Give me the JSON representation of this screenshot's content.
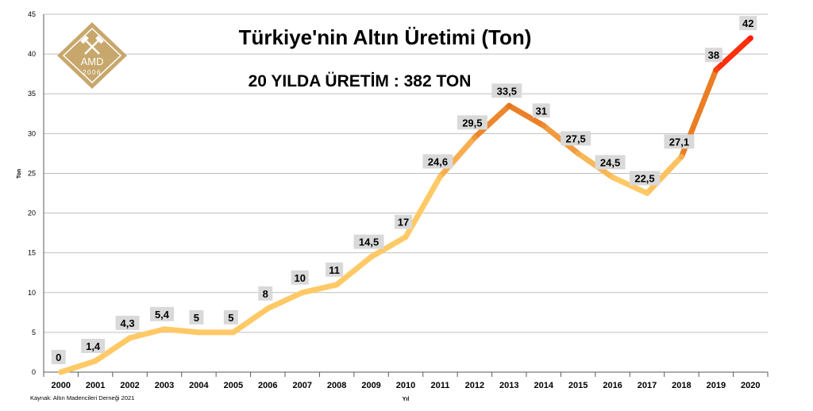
{
  "chart_data": {
    "type": "line",
    "title": "Türkiye'nin Altın Üretimi (Ton)",
    "subtitle": "20 YILDA ÜRETİM : 382 TON",
    "xlabel": "Yıl",
    "ylabel": "Ton",
    "source": "Kaynak: Altın Madencileri Derneği 2021",
    "ylim": [
      0,
      45
    ],
    "yticks": [
      "0",
      "5",
      "10",
      "15",
      "20",
      "25",
      "30",
      "35",
      "40",
      "45"
    ],
    "grid": true,
    "categories": [
      "2000",
      "2001",
      "2002",
      "2003",
      "2004",
      "2005",
      "2006",
      "2007",
      "2008",
      "2009",
      "2010",
      "2011",
      "2012",
      "2013",
      "2014",
      "2015",
      "2016",
      "2017",
      "2018",
      "2019",
      "2020"
    ],
    "values": [
      0,
      1.4,
      4.3,
      5.4,
      5,
      5,
      8,
      10,
      11,
      14.5,
      17,
      24.6,
      29.5,
      33.5,
      31,
      27.5,
      24.5,
      22.5,
      27.1,
      38,
      42
    ],
    "data_labels": [
      "0",
      "1,4",
      "4,3",
      "5,4",
      "5",
      "5",
      "8",
      "10",
      "11",
      "14,5",
      "17",
      "24,6",
      "29,5",
      "33,5",
      "31",
      "27,5",
      "24,5",
      "22,5",
      "27,1",
      "38",
      "42"
    ],
    "colors": {
      "low": "#FFC966",
      "mid": "#E8741E",
      "high": "#FF1A05",
      "grid": "#BFBFBF",
      "label_bg": "#D9D9D9"
    }
  },
  "logo": {
    "text": "AMD",
    "year": "2006",
    "gold": "#C7A76C"
  }
}
